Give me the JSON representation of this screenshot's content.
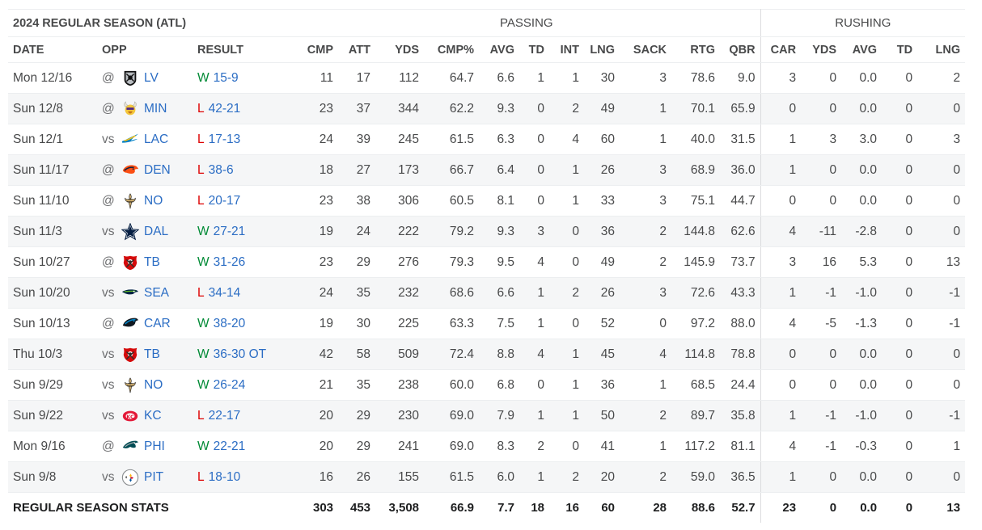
{
  "title": "2024 REGULAR SEASON (ATL)",
  "groups": {
    "passing": "PASSING",
    "rushing": "RUSHING"
  },
  "headers": {
    "date": "DATE",
    "opp": "OPP",
    "result": "RESULT",
    "cmp": "CMP",
    "att": "ATT",
    "yds": "YDS",
    "cmp_pct": "CMP%",
    "avg": "AVG",
    "td": "TD",
    "int": "INT",
    "lng": "LNG",
    "sack": "SACK",
    "rtg": "RTG",
    "qbr": "QBR",
    "car": "CAR",
    "r_yds": "YDS",
    "r_avg": "AVG",
    "r_td": "TD",
    "r_lng": "LNG"
  },
  "games": [
    {
      "date": "Mon 12/16",
      "ha": "@",
      "team": "LV",
      "logo": "raiders-logo-icon",
      "wl": "W",
      "score": "15-9",
      "cmp": "11",
      "att": "17",
      "yds": "112",
      "cmp_pct": "64.7",
      "avg": "6.6",
      "td": "1",
      "int": "1",
      "lng": "30",
      "sack": "3",
      "rtg": "78.6",
      "qbr": "9.0",
      "car": "3",
      "r_yds": "0",
      "r_avg": "0.0",
      "r_td": "0",
      "r_lng": "2"
    },
    {
      "date": "Sun 12/8",
      "ha": "@",
      "team": "MIN",
      "logo": "vikings-logo-icon",
      "wl": "L",
      "score": "42-21",
      "cmp": "23",
      "att": "37",
      "yds": "344",
      "cmp_pct": "62.2",
      "avg": "9.3",
      "td": "0",
      "int": "2",
      "lng": "49",
      "sack": "1",
      "rtg": "70.1",
      "qbr": "65.9",
      "car": "0",
      "r_yds": "0",
      "r_avg": "0.0",
      "r_td": "0",
      "r_lng": "0"
    },
    {
      "date": "Sun 12/1",
      "ha": "vs",
      "team": "LAC",
      "logo": "chargers-logo-icon",
      "wl": "L",
      "score": "17-13",
      "cmp": "24",
      "att": "39",
      "yds": "245",
      "cmp_pct": "61.5",
      "avg": "6.3",
      "td": "0",
      "int": "4",
      "lng": "60",
      "sack": "1",
      "rtg": "40.0",
      "qbr": "31.5",
      "car": "1",
      "r_yds": "3",
      "r_avg": "3.0",
      "r_td": "0",
      "r_lng": "3"
    },
    {
      "date": "Sun 11/17",
      "ha": "@",
      "team": "DEN",
      "logo": "broncos-logo-icon",
      "wl": "L",
      "score": "38-6",
      "cmp": "18",
      "att": "27",
      "yds": "173",
      "cmp_pct": "66.7",
      "avg": "6.4",
      "td": "0",
      "int": "1",
      "lng": "26",
      "sack": "3",
      "rtg": "68.9",
      "qbr": "36.0",
      "car": "1",
      "r_yds": "0",
      "r_avg": "0.0",
      "r_td": "0",
      "r_lng": "0"
    },
    {
      "date": "Sun 11/10",
      "ha": "@",
      "team": "NO",
      "logo": "saints-logo-icon",
      "wl": "L",
      "score": "20-17",
      "cmp": "23",
      "att": "38",
      "yds": "306",
      "cmp_pct": "60.5",
      "avg": "8.1",
      "td": "0",
      "int": "1",
      "lng": "33",
      "sack": "3",
      "rtg": "75.1",
      "qbr": "44.7",
      "car": "0",
      "r_yds": "0",
      "r_avg": "0.0",
      "r_td": "0",
      "r_lng": "0"
    },
    {
      "date": "Sun 11/3",
      "ha": "vs",
      "team": "DAL",
      "logo": "cowboys-logo-icon",
      "wl": "W",
      "score": "27-21",
      "cmp": "19",
      "att": "24",
      "yds": "222",
      "cmp_pct": "79.2",
      "avg": "9.3",
      "td": "3",
      "int": "0",
      "lng": "36",
      "sack": "2",
      "rtg": "144.8",
      "qbr": "62.6",
      "car": "4",
      "r_yds": "-11",
      "r_avg": "-2.8",
      "r_td": "0",
      "r_lng": "0"
    },
    {
      "date": "Sun 10/27",
      "ha": "@",
      "team": "TB",
      "logo": "buccaneers-logo-icon",
      "wl": "W",
      "score": "31-26",
      "cmp": "23",
      "att": "29",
      "yds": "276",
      "cmp_pct": "79.3",
      "avg": "9.5",
      "td": "4",
      "int": "0",
      "lng": "49",
      "sack": "2",
      "rtg": "145.9",
      "qbr": "73.7",
      "car": "3",
      "r_yds": "16",
      "r_avg": "5.3",
      "r_td": "0",
      "r_lng": "13"
    },
    {
      "date": "Sun 10/20",
      "ha": "vs",
      "team": "SEA",
      "logo": "seahawks-logo-icon",
      "wl": "L",
      "score": "34-14",
      "cmp": "24",
      "att": "35",
      "yds": "232",
      "cmp_pct": "68.6",
      "avg": "6.6",
      "td": "1",
      "int": "2",
      "lng": "26",
      "sack": "3",
      "rtg": "72.6",
      "qbr": "43.3",
      "car": "1",
      "r_yds": "-1",
      "r_avg": "-1.0",
      "r_td": "0",
      "r_lng": "-1"
    },
    {
      "date": "Sun 10/13",
      "ha": "@",
      "team": "CAR",
      "logo": "panthers-logo-icon",
      "wl": "W",
      "score": "38-20",
      "cmp": "19",
      "att": "30",
      "yds": "225",
      "cmp_pct": "63.3",
      "avg": "7.5",
      "td": "1",
      "int": "0",
      "lng": "52",
      "sack": "0",
      "rtg": "97.2",
      "qbr": "88.0",
      "car": "4",
      "r_yds": "-5",
      "r_avg": "-1.3",
      "r_td": "0",
      "r_lng": "-1"
    },
    {
      "date": "Thu 10/3",
      "ha": "vs",
      "team": "TB",
      "logo": "buccaneers-logo-icon",
      "wl": "W",
      "score": "36-30 OT",
      "cmp": "42",
      "att": "58",
      "yds": "509",
      "cmp_pct": "72.4",
      "avg": "8.8",
      "td": "4",
      "int": "1",
      "lng": "45",
      "sack": "4",
      "rtg": "114.8",
      "qbr": "78.8",
      "car": "0",
      "r_yds": "0",
      "r_avg": "0.0",
      "r_td": "0",
      "r_lng": "0"
    },
    {
      "date": "Sun 9/29",
      "ha": "vs",
      "team": "NO",
      "logo": "saints-logo-icon",
      "wl": "W",
      "score": "26-24",
      "cmp": "21",
      "att": "35",
      "yds": "238",
      "cmp_pct": "60.0",
      "avg": "6.8",
      "td": "0",
      "int": "1",
      "lng": "36",
      "sack": "1",
      "rtg": "68.5",
      "qbr": "24.4",
      "car": "0",
      "r_yds": "0",
      "r_avg": "0.0",
      "r_td": "0",
      "r_lng": "0"
    },
    {
      "date": "Sun 9/22",
      "ha": "vs",
      "team": "KC",
      "logo": "chiefs-logo-icon",
      "wl": "L",
      "score": "22-17",
      "cmp": "20",
      "att": "29",
      "yds": "230",
      "cmp_pct": "69.0",
      "avg": "7.9",
      "td": "1",
      "int": "1",
      "lng": "50",
      "sack": "2",
      "rtg": "89.7",
      "qbr": "35.8",
      "car": "1",
      "r_yds": "-1",
      "r_avg": "-1.0",
      "r_td": "0",
      "r_lng": "-1"
    },
    {
      "date": "Mon 9/16",
      "ha": "@",
      "team": "PHI",
      "logo": "eagles-logo-icon",
      "wl": "W",
      "score": "22-21",
      "cmp": "20",
      "att": "29",
      "yds": "241",
      "cmp_pct": "69.0",
      "avg": "8.3",
      "td": "2",
      "int": "0",
      "lng": "41",
      "sack": "1",
      "rtg": "117.2",
      "qbr": "81.1",
      "car": "4",
      "r_yds": "-1",
      "r_avg": "-0.3",
      "r_td": "0",
      "r_lng": "1"
    },
    {
      "date": "Sun 9/8",
      "ha": "vs",
      "team": "PIT",
      "logo": "steelers-logo-icon",
      "wl": "L",
      "score": "18-10",
      "cmp": "16",
      "att": "26",
      "yds": "155",
      "cmp_pct": "61.5",
      "avg": "6.0",
      "td": "1",
      "int": "2",
      "lng": "20",
      "sack": "2",
      "rtg": "59.0",
      "qbr": "36.5",
      "car": "1",
      "r_yds": "0",
      "r_avg": "0.0",
      "r_td": "0",
      "r_lng": "0"
    }
  ],
  "totals": {
    "label": "REGULAR SEASON STATS",
    "cmp": "303",
    "att": "453",
    "yds": "3,508",
    "cmp_pct": "66.9",
    "avg": "7.7",
    "td": "18",
    "int": "16",
    "lng": "60",
    "sack": "28",
    "rtg": "88.6",
    "qbr": "52.7",
    "car": "23",
    "r_yds": "0",
    "r_avg": "0.0",
    "r_td": "0",
    "r_lng": "13"
  },
  "colors": {
    "win": "#008a35",
    "loss": "#dd0000",
    "link": "#2b6dc4"
  }
}
